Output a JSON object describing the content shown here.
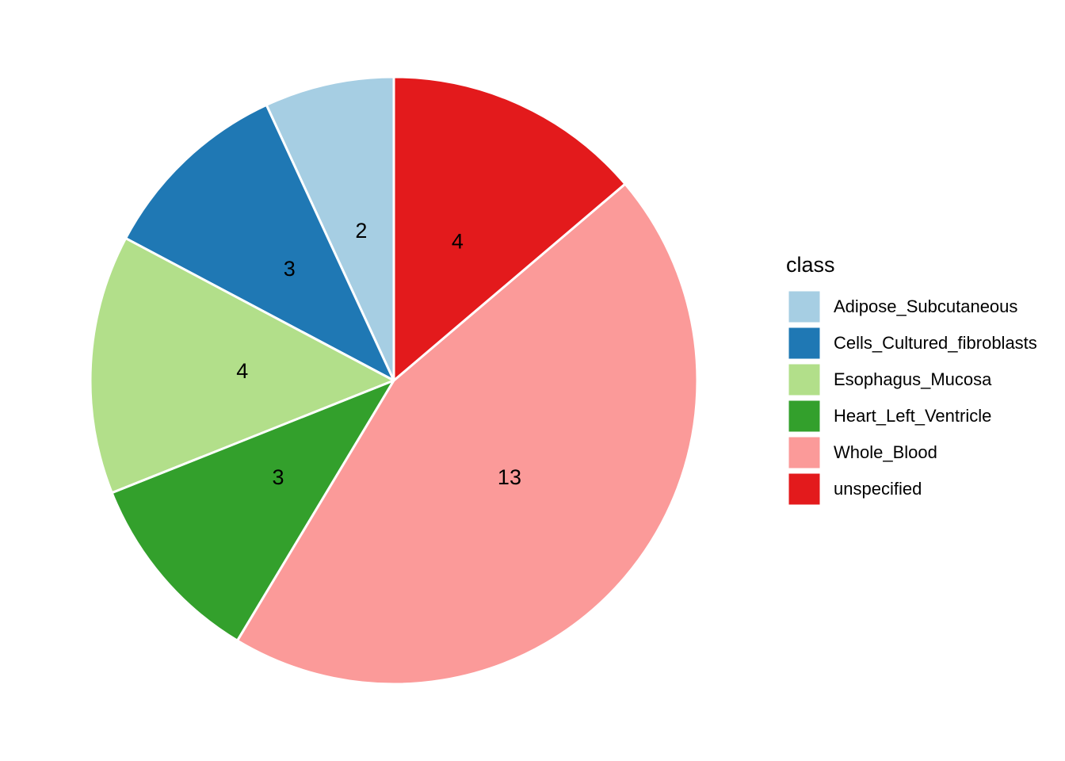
{
  "chart_data": {
    "type": "pie",
    "legend_title": "class",
    "categories": [
      "Adipose_Subcutaneous",
      "Cells_Cultured_fibroblasts",
      "Esophagus_Mucosa",
      "Heart_Left_Ventricle",
      "Whole_Blood",
      "unspecified"
    ],
    "values": [
      2,
      3,
      4,
      3,
      13,
      4
    ],
    "colors": [
      "#a6cee3",
      "#1f78b4",
      "#b2df8a",
      "#33a02c",
      "#fb9a99",
      "#e31a1c"
    ],
    "legend_position": "right"
  }
}
